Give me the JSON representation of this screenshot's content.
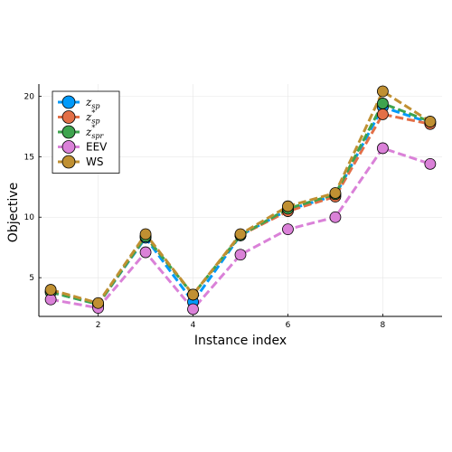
{
  "chart_data": {
    "type": "line",
    "title": "",
    "xlabel": "Instance index",
    "ylabel": "Objective",
    "xlim": [
      0.75,
      9.25
    ],
    "ylim": [
      1.8,
      21
    ],
    "xticks": [
      2,
      4,
      6,
      8
    ],
    "yticks": [
      5,
      10,
      15,
      20
    ],
    "grid": true,
    "legend_position": "top-left",
    "x": [
      1,
      2,
      3,
      4,
      5,
      6,
      7,
      8,
      9
    ],
    "series": [
      {
        "name": "z_sp",
        "legend": {
          "base": "z",
          "sub": "sp",
          "sup": ""
        },
        "color": "#009AFA",
        "values": [
          3.8,
          2.8,
          8.3,
          3.0,
          8.5,
          10.6,
          11.8,
          19.1,
          17.8
        ]
      },
      {
        "name": "z*_sp",
        "legend": {
          "base": "z",
          "sub": "sp",
          "sup": "*"
        },
        "color": "#E36F47",
        "values": [
          3.9,
          2.8,
          8.4,
          3.6,
          8.5,
          10.5,
          11.7,
          18.5,
          17.7
        ]
      },
      {
        "name": "z*_spr",
        "legend": {
          "base": "z",
          "sub": "spr",
          "sup": "*"
        },
        "color": "#3EA44E",
        "values": [
          3.8,
          2.8,
          8.4,
          3.6,
          8.5,
          10.7,
          11.9,
          19.4,
          17.9
        ]
      },
      {
        "name": "EEV",
        "legend": {
          "base": "EEV",
          "sub": "",
          "sup": ""
        },
        "color": "#DA81D8",
        "values": [
          3.2,
          2.5,
          7.1,
          2.4,
          6.9,
          9.0,
          10.0,
          15.7,
          14.4
        ]
      },
      {
        "name": "WS",
        "legend": {
          "base": "WS",
          "sub": "",
          "sup": ""
        },
        "color": "#C09032",
        "values": [
          4.0,
          2.9,
          8.6,
          3.6,
          8.6,
          10.9,
          12.0,
          20.4,
          17.9
        ]
      }
    ]
  }
}
